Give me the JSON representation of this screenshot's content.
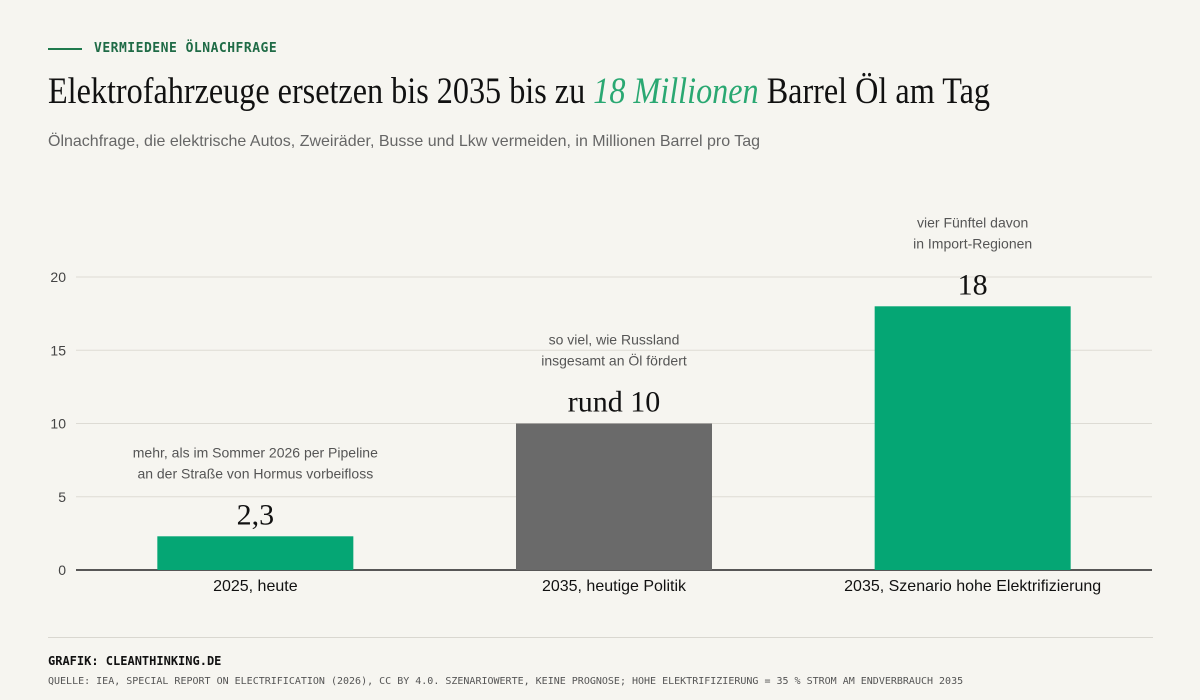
{
  "kicker": "VERMIEDENE ÖLNACHFRAGE",
  "title": {
    "before": "Elektrofahrzeuge ersetzen bis 2035 bis zu ",
    "highlight": "18 Millionen",
    "after": " Barrel Öl am Tag"
  },
  "subtitle": "Ölnachfrage, die elektrische Autos, Zweiräder, Busse und Lkw vermeiden, in Millionen Barrel pro Tag",
  "colors": {
    "green": "#05a674",
    "gray": "#6a6a6a",
    "accent_text": "#2aa872"
  },
  "chart_data": {
    "type": "bar",
    "title": "Elektrofahrzeuge ersetzen bis 2035 bis zu 18 Millionen Barrel Öl am Tag",
    "categories": [
      "2025, heute",
      "2035, heutige Politik",
      "2035, Szenario hohe Elektrifizierung"
    ],
    "values": [
      2.3,
      10,
      18
    ],
    "value_labels": [
      "2,3",
      "rund 10",
      "18"
    ],
    "bar_colors": [
      "#05a674",
      "#6a6a6a",
      "#05a674"
    ],
    "annotations": [
      [
        "mehr, als im Sommer 2026 per Pipeline",
        "an der Straße von Hormus vorbeifloss"
      ],
      [
        "so viel, wie Russland",
        "insgesamt an Öl fördert"
      ],
      [
        "vier Fünftel davon",
        "in Import-Regionen"
      ]
    ],
    "yticks": [
      "0",
      "5",
      "10",
      "15",
      "20"
    ],
    "ylim": [
      0,
      20
    ],
    "grid": true,
    "xlabel": "",
    "ylabel": ""
  },
  "footer": {
    "credit": "GRAFIK: CLEANTHINKING.DE",
    "source": "QUELLE: IEA, SPECIAL REPORT ON ELECTRIFICATION (2026), CC BY 4.0. SZENARIOWERTE, KEINE PROGNOSE; HOHE ELEKTRIFIZIERUNG = 35 % STROM AM ENDVERBRAUCH 2035"
  }
}
